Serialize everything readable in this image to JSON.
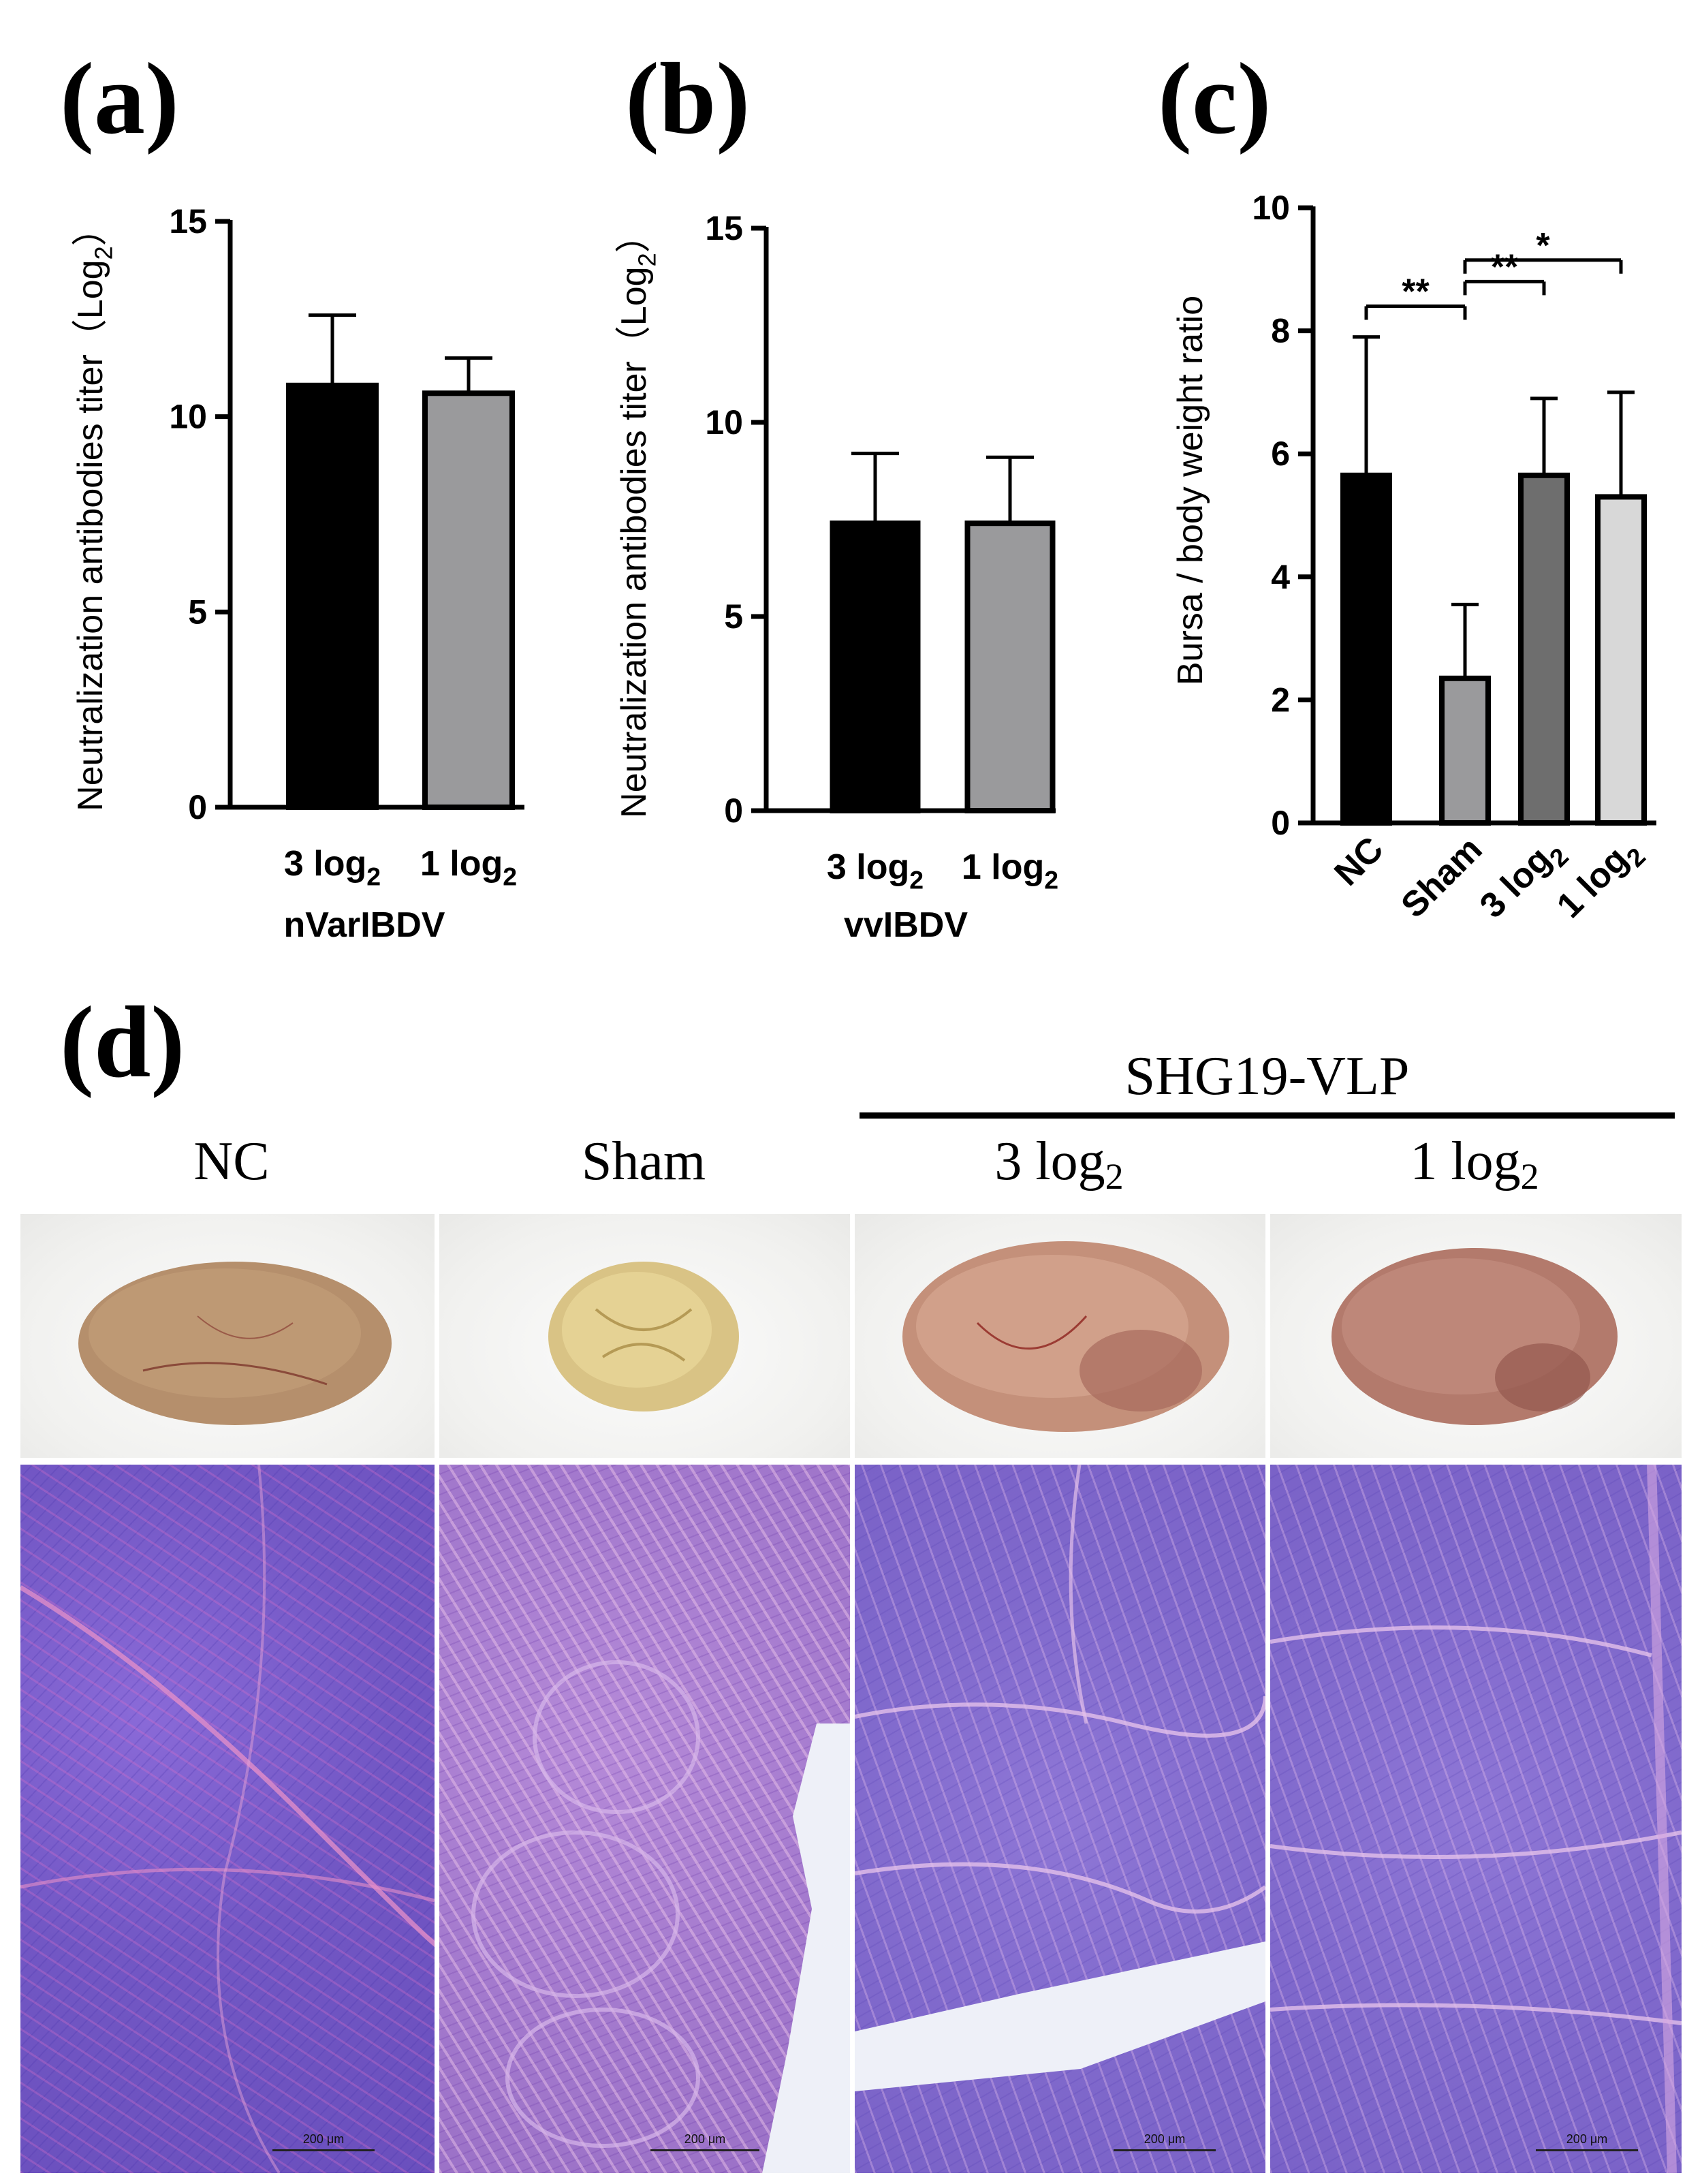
{
  "panels": {
    "a": "(a)",
    "b": "(b)",
    "c": "(c)",
    "d": "(d)"
  },
  "chart_data": [
    {
      "panel": "(a)",
      "type": "bar",
      "ylabel": "Neutralization antibodies titer（Log2）",
      "xlabel": "nVarIBDV",
      "categories": [
        "3 log2",
        "1 log2"
      ],
      "values": [
        10.8,
        10.6
      ],
      "errors": [
        1.8,
        0.9
      ],
      "colors": [
        "#000000",
        "#9a9a9c"
      ],
      "ylim": [
        0,
        15
      ],
      "yticks": [
        0,
        5,
        10,
        15
      ]
    },
    {
      "panel": "(b)",
      "type": "bar",
      "ylabel": "Neutralization antibodies titer（Log2）",
      "xlabel": "vvIBDV",
      "categories": [
        "3 log2",
        "1 log2"
      ],
      "values": [
        7.4,
        7.4
      ],
      "errors": [
        1.8,
        1.7
      ],
      "colors": [
        "#000000",
        "#9a9a9c"
      ],
      "ylim": [
        0,
        15
      ],
      "yticks": [
        0,
        5,
        10,
        15
      ]
    },
    {
      "panel": "(c)",
      "type": "bar",
      "ylabel": "Bursa / body weight ratio",
      "xlabel": "",
      "categories": [
        "NC",
        "Sham",
        "3 log2",
        "1 log2"
      ],
      "values": [
        5.65,
        2.35,
        5.65,
        5.3
      ],
      "errors": [
        2.25,
        1.2,
        1.25,
        1.7
      ],
      "colors": [
        "#000000",
        "#9a9a9c",
        "#6e6e6e",
        "#d8d8d8"
      ],
      "ylim": [
        0,
        10
      ],
      "yticks": [
        0,
        2,
        4,
        6,
        8,
        10
      ],
      "significance": [
        {
          "from": 0,
          "to": 1,
          "label": "**",
          "y": 8.4
        },
        {
          "from": 1,
          "to": 2,
          "label": "**",
          "y": 8.8
        },
        {
          "from": 1,
          "to": 3,
          "label": "*",
          "y": 9.15
        }
      ]
    }
  ],
  "histology": {
    "group_header": "SHG19-VLP",
    "columns": [
      {
        "label": "NC",
        "sub": ""
      },
      {
        "label": "Sham",
        "sub": ""
      },
      {
        "label": "3 log",
        "sub": "2"
      },
      {
        "label": "1 log",
        "sub": "2"
      }
    ],
    "scale_bar": "200 μm"
  }
}
